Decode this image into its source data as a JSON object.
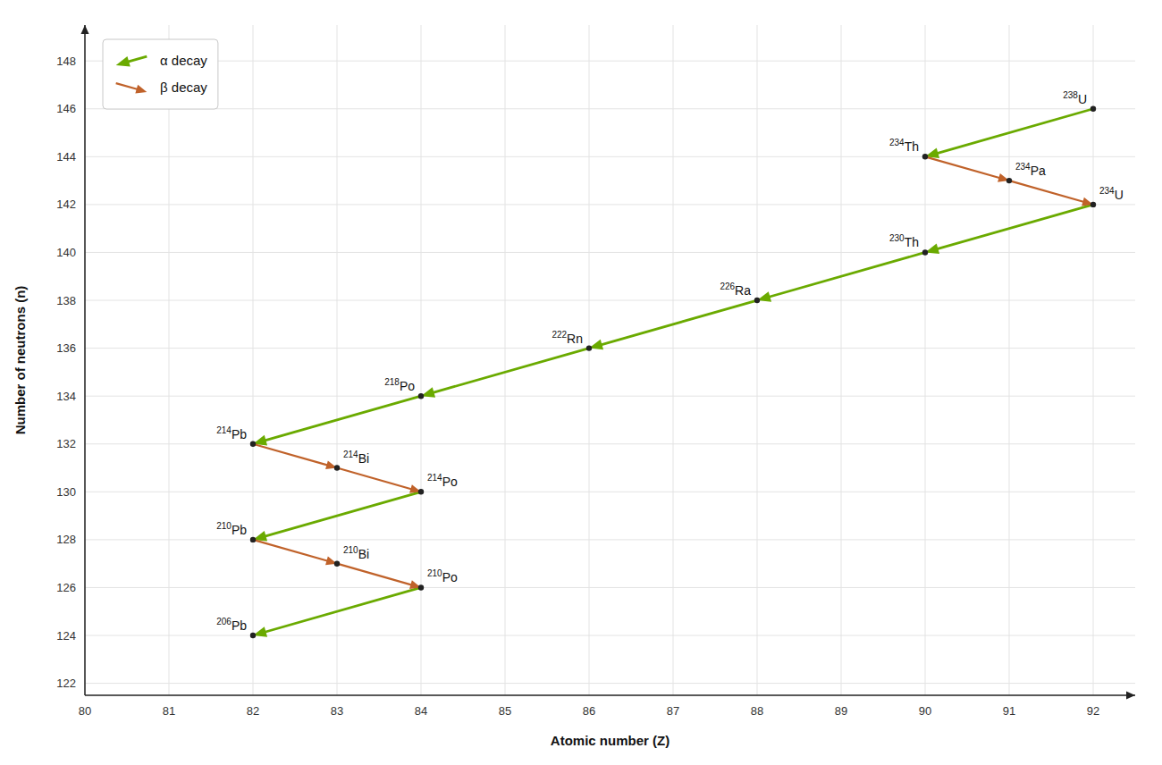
{
  "chart_data": {
    "type": "decay_chain",
    "xlabel": "Atomic number (Z)",
    "ylabel": "Number of neutrons (n)",
    "xlim": [
      80,
      92.5
    ],
    "ylim": [
      121.5,
      149.5
    ],
    "xticks": [
      80,
      81,
      82,
      83,
      84,
      85,
      86,
      87,
      88,
      89,
      90,
      91,
      92
    ],
    "yticks": [
      122,
      124,
      126,
      128,
      130,
      132,
      134,
      136,
      138,
      140,
      142,
      144,
      146,
      148
    ],
    "grid": true,
    "legend": "top-left",
    "nuclides": {
      "x": [
        92,
        90,
        91,
        92,
        90,
        88,
        86,
        84,
        82,
        83,
        84,
        82,
        83,
        84,
        82
      ],
      "values": [
        146,
        144,
        143,
        142,
        140,
        138,
        136,
        134,
        132,
        131,
        130,
        128,
        127,
        126,
        124
      ],
      "mass": [
        238,
        234,
        234,
        234,
        230,
        226,
        222,
        218,
        214,
        214,
        214,
        210,
        210,
        210,
        206
      ],
      "elements": [
        "U",
        "Th",
        "Pa",
        "U",
        "Th",
        "Ra",
        "Rn",
        "Po",
        "Pb",
        "Bi",
        "Po",
        "Pb",
        "Bi",
        "Po",
        "Pb"
      ]
    },
    "series": [
      {
        "name": "α decay",
        "color": "#6aaa00",
        "segments": [
          [
            92,
            146,
            90,
            144
          ],
          [
            92,
            142,
            90,
            140
          ],
          [
            90,
            140,
            88,
            138
          ],
          [
            88,
            138,
            86,
            136
          ],
          [
            86,
            136,
            84,
            134
          ],
          [
            84,
            134,
            82,
            132
          ],
          [
            84,
            130,
            82,
            128
          ],
          [
            84,
            126,
            82,
            124
          ]
        ]
      },
      {
        "name": "β decay",
        "color": "#c0622a",
        "segments": [
          [
            90,
            144,
            91,
            143
          ],
          [
            91,
            143,
            92,
            142
          ],
          [
            82,
            132,
            83,
            131
          ],
          [
            83,
            131,
            84,
            130
          ],
          [
            82,
            128,
            83,
            127
          ],
          [
            83,
            127,
            84,
            126
          ]
        ]
      }
    ]
  }
}
